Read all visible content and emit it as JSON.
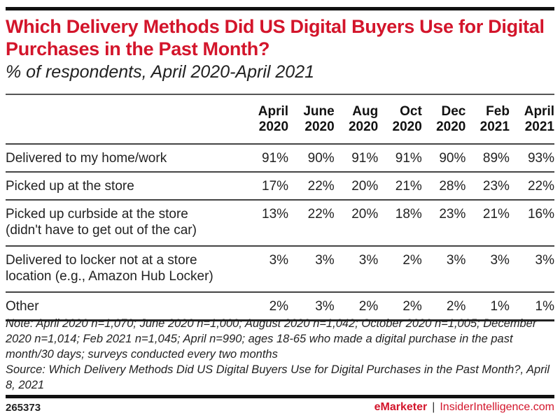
{
  "chart_data": {
    "type": "table",
    "title": "Which Delivery Methods Did US Digital Buyers Use for Digital Purchases in the Past Month?",
    "subtitle": "% of respondents, April 2020-April 2021",
    "columns": [
      {
        "line1": "April",
        "line2": "2020"
      },
      {
        "line1": "June",
        "line2": "2020"
      },
      {
        "line1": "Aug",
        "line2": "2020"
      },
      {
        "line1": "Oct",
        "line2": "2020"
      },
      {
        "line1": "Dec",
        "line2": "2020"
      },
      {
        "line1": "Feb",
        "line2": "2021"
      },
      {
        "line1": "April",
        "line2": "2021"
      }
    ],
    "rows": [
      {
        "label_line1": "Delivered to my home/work",
        "label_line2": "",
        "values": [
          "91%",
          "90%",
          "91%",
          "91%",
          "90%",
          "89%",
          "93%"
        ]
      },
      {
        "label_line1": "Picked up at the store",
        "label_line2": "",
        "values": [
          "17%",
          "22%",
          "20%",
          "21%",
          "28%",
          "23%",
          "22%"
        ]
      },
      {
        "label_line1": "Picked up curbside at the store",
        "label_line2": "(didn't have to get out of the car)",
        "values": [
          "13%",
          "22%",
          "20%",
          "18%",
          "23%",
          "21%",
          "16%"
        ]
      },
      {
        "label_line1": "Delivered to locker not at a store",
        "label_line2": "location (e.g., Amazon Hub Locker)",
        "values": [
          "3%",
          "3%",
          "3%",
          "2%",
          "3%",
          "3%",
          "3%"
        ]
      },
      {
        "label_line1": "Other",
        "label_line2": "",
        "values": [
          "2%",
          "3%",
          "2%",
          "2%",
          "2%",
          "1%",
          "1%"
        ]
      }
    ],
    "note": "Note: April 2020 n=1,070; June 2020 n=1,000; August 2020 n=1,042; October 2020 n=1,005; December 2020 n=1,014; Feb 2021 n=1,045; April n=990; ages 18-65 who made a digital purchase in the past month/30 days; surveys conducted every two months",
    "source": "Source: Which Delivery Methods Did US Digital Buyers Use for Digital Purchases in the Past Month?, April 8, 2021"
  },
  "footer": {
    "chart_id": "265373",
    "brand_emarketer": "eMarketer",
    "separator": "|",
    "brand_insider": "InsiderIntelligence.com"
  },
  "colors": {
    "title_red": "#d3152b",
    "rule_dark": "#111111"
  }
}
